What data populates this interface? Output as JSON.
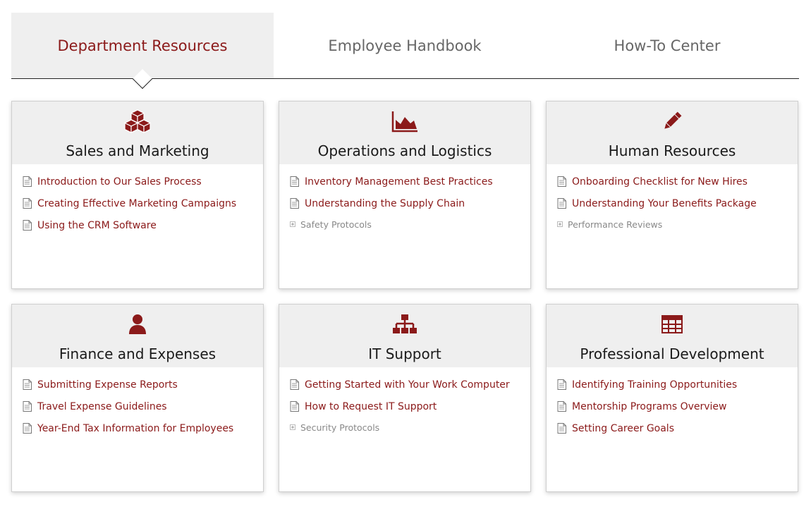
{
  "tabs": [
    {
      "label": "Department Resources",
      "active": true
    },
    {
      "label": "Employee Handbook",
      "active": false
    },
    {
      "label": "How-To Center",
      "active": false
    }
  ],
  "colors": {
    "accent": "#8b1a1a",
    "tab_inactive": "#666666",
    "panel_bg": "#efefef"
  },
  "cards": [
    {
      "icon": "cubes-icon",
      "title": "Sales and Marketing",
      "items": [
        {
          "label": "Introduction to Our Sales Process",
          "kind": "doc"
        },
        {
          "label": "Creating Effective Marketing Campaigns",
          "kind": "doc"
        },
        {
          "label": "Using the CRM Software",
          "kind": "doc"
        }
      ]
    },
    {
      "icon": "area-chart-icon",
      "title": "Operations and Logistics",
      "items": [
        {
          "label": "Inventory Management Best Practices",
          "kind": "doc"
        },
        {
          "label": "Understanding the Supply Chain",
          "kind": "doc"
        },
        {
          "label": "Safety Protocols",
          "kind": "folder"
        }
      ]
    },
    {
      "icon": "pencil-icon",
      "title": "Human Resources",
      "items": [
        {
          "label": "Onboarding Checklist for New Hires",
          "kind": "doc"
        },
        {
          "label": "Understanding Your Benefits Package",
          "kind": "doc"
        },
        {
          "label": "Performance Reviews",
          "kind": "folder"
        }
      ]
    },
    {
      "icon": "user-icon",
      "title": "Finance and Expenses",
      "items": [
        {
          "label": "Submitting Expense Reports",
          "kind": "doc"
        },
        {
          "label": "Travel Expense Guidelines",
          "kind": "doc"
        },
        {
          "label": "Year-End Tax Information for Employees",
          "kind": "doc"
        }
      ]
    },
    {
      "icon": "sitemap-icon",
      "title": "IT Support",
      "items": [
        {
          "label": "Getting Started with Your Work Computer",
          "kind": "doc"
        },
        {
          "label": "How to Request IT Support",
          "kind": "doc"
        },
        {
          "label": "Security Protocols",
          "kind": "folder"
        }
      ]
    },
    {
      "icon": "table-icon",
      "title": "Professional Development",
      "items": [
        {
          "label": "Identifying Training Opportunities",
          "kind": "doc"
        },
        {
          "label": "Mentorship Programs Overview",
          "kind": "doc"
        },
        {
          "label": "Setting Career Goals",
          "kind": "doc"
        }
      ]
    }
  ]
}
